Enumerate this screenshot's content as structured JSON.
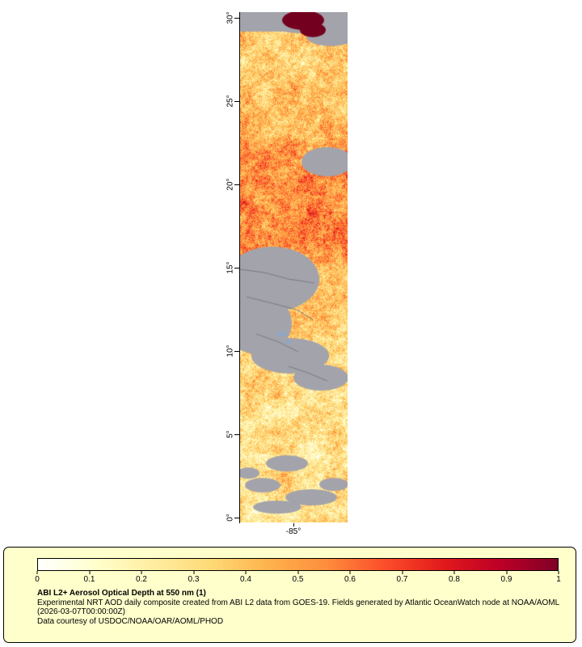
{
  "map": {
    "lat_ticks": [
      "30°",
      "25°",
      "20°",
      "15°",
      "10°",
      "5°",
      "0°"
    ],
    "lon_label": "-85°",
    "render": {
      "colormap": [
        "#ffffff",
        "#ffffcc",
        "#ffeda0",
        "#fed976",
        "#feb24c",
        "#fd8d3c",
        "#fc4e2a",
        "#e31a1c",
        "#bd0026",
        "#800026"
      ],
      "no_data_color": "#a3a3ab",
      "land_mask_color": "#73001f",
      "water_color": "#8fa7c6",
      "seed": 11,
      "noise_amp": 0.5,
      "speckle": 0.3,
      "base_profile": [
        [
          0,
          0.4
        ],
        [
          40,
          0.36
        ],
        [
          90,
          0.38
        ],
        [
          150,
          0.44
        ],
        [
          200,
          0.56
        ],
        [
          290,
          0.52
        ],
        [
          320,
          0.4
        ],
        [
          380,
          0.36
        ],
        [
          460,
          0.3
        ],
        [
          520,
          0.26
        ],
        [
          580,
          0.3
        ],
        [
          631,
          0.24
        ]
      ],
      "gray_rects": [
        [
          0,
          0,
          133,
          24
        ]
      ],
      "gray_blobs": [
        [
          75,
          14,
          40,
          12
        ],
        [
          112,
          30,
          30,
          12
        ],
        [
          108,
          185,
          32,
          18
        ],
        [
          40,
          330,
          58,
          40
        ],
        [
          22,
          385,
          42,
          38
        ],
        [
          62,
          425,
          48,
          22
        ],
        [
          100,
          452,
          34,
          16
        ],
        [
          58,
          558,
          26,
          10
        ],
        [
          28,
          585,
          22,
          9
        ],
        [
          88,
          600,
          32,
          10
        ],
        [
          116,
          584,
          18,
          8
        ],
        [
          46,
          612,
          30,
          8
        ],
        [
          10,
          570,
          14,
          7
        ]
      ],
      "red_blobs": [
        [
          78,
          10,
          26,
          12
        ],
        [
          90,
          22,
          16,
          9
        ]
      ],
      "water_blobs": [
        [
          52,
          398,
          6,
          3
        ],
        [
          60,
          408,
          4,
          2
        ]
      ],
      "border_lines": [
        [
          [
            0,
            318
          ],
          [
            30,
            322
          ],
          [
            60,
            330
          ],
          [
            92,
            335
          ]
        ],
        [
          [
            8,
            352
          ],
          [
            40,
            360
          ],
          [
            70,
            368
          ],
          [
            90,
            380
          ]
        ],
        [
          [
            20,
            398
          ],
          [
            48,
            408
          ],
          [
            72,
            420
          ]
        ],
        [
          [
            60,
            438
          ],
          [
            84,
            446
          ],
          [
            108,
            456
          ]
        ]
      ]
    }
  },
  "legend": {
    "background": "#ffffcc",
    "ticks": [
      "0",
      "0.1",
      "0.2",
      "0.3",
      "0.4",
      "0.5",
      "0.6",
      "0.7",
      "0.8",
      "0.9",
      "1"
    ],
    "title": "ABI L2+ Aerosol Optical Depth at 550 nm (1)",
    "description": "Experimental NRT AOD daily composite created from ABI L2 data from GOES-19. Fields generated by Atlantic OceanWatch node at NOAA/AOML",
    "timestamp": "(2026-03-07T00:00:00Z)",
    "credit": "Data courtesy of USDOC/NOAA/OAR/AOML/PHOD"
  }
}
